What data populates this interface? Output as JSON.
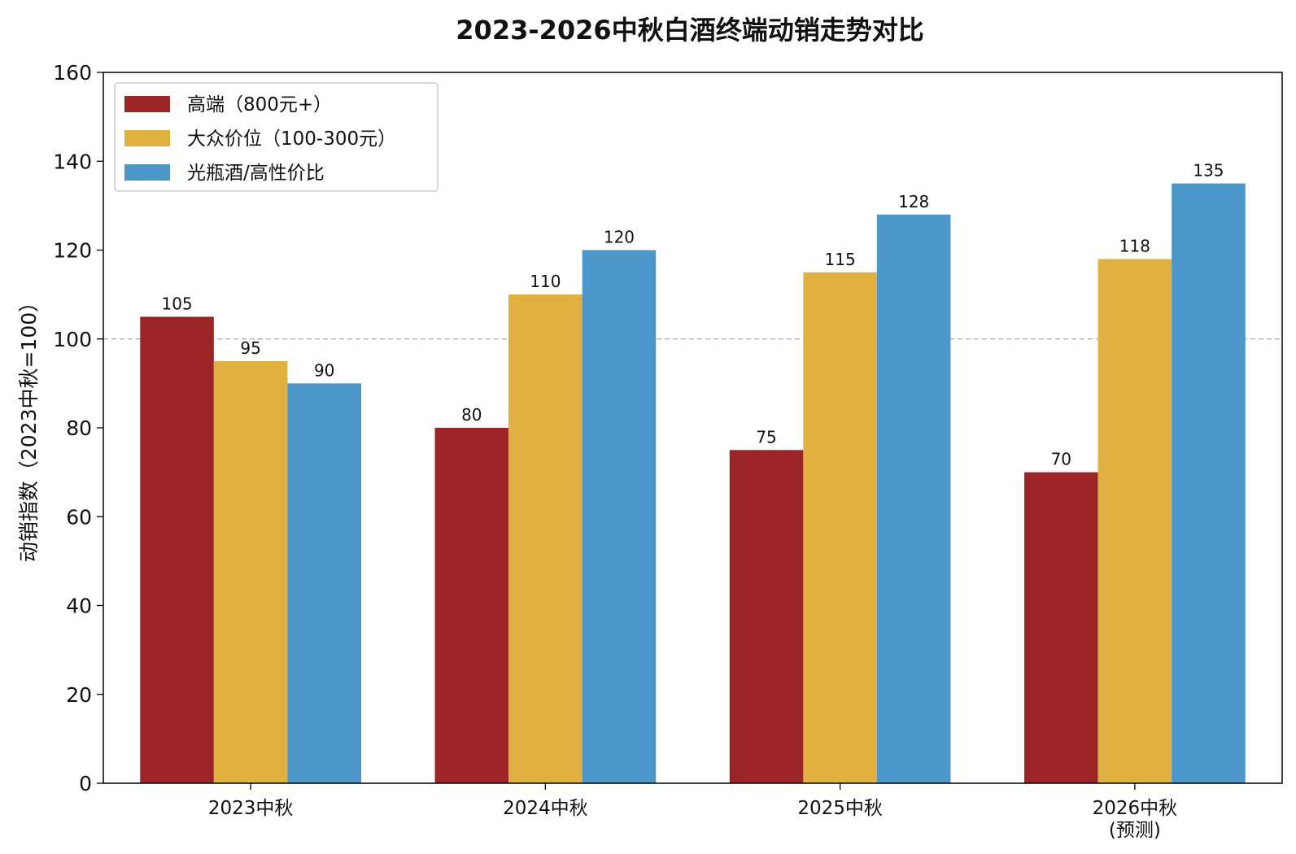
{
  "chart_data": {
    "type": "bar",
    "title": "2023-2026中秋白酒终端动销走势对比",
    "xlabel": "",
    "ylabel": "动销指数（2023中秋=100）",
    "categories": [
      "2023中秋",
      "2024中秋",
      "2025中秋",
      "2026中秋\n(预测)"
    ],
    "series": [
      {
        "name": "高端（800元+）",
        "values": [
          105,
          80,
          75,
          70
        ],
        "color": "#9b2426"
      },
      {
        "name": "大众价位（100-300元）",
        "values": [
          95,
          110,
          115,
          118
        ],
        "color": "#e0b040"
      },
      {
        "name": "光瓶酒/高性价比",
        "values": [
          90,
          120,
          128,
          135
        ],
        "color": "#4b97ca"
      }
    ],
    "ylim": [
      0,
      160
    ],
    "yticks": [
      0,
      20,
      40,
      60,
      80,
      100,
      120,
      140,
      160
    ],
    "reference_line": {
      "value": 100,
      "style": "dashed",
      "color": "#aaaaaa"
    },
    "legend_position": "top-left",
    "grid": false,
    "data_labels": true
  }
}
